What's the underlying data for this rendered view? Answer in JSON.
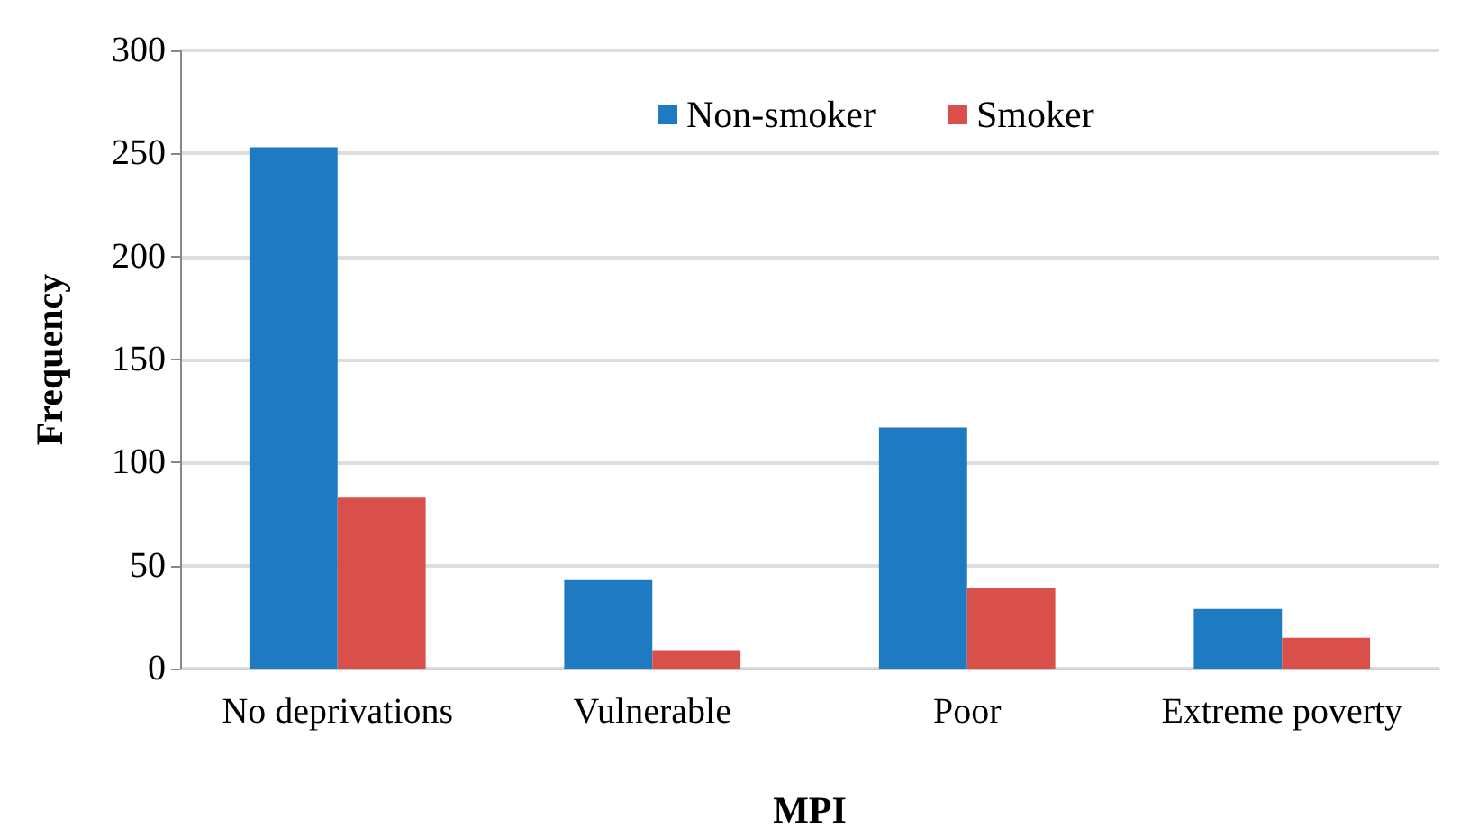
{
  "chart_data": {
    "type": "bar",
    "xlabel": "MPI",
    "ylabel": "Frequency",
    "categories": [
      "No deprivations",
      "Vulnerable",
      "Poor",
      "Extreme poverty"
    ],
    "series": [
      {
        "name": "Non-smoker",
        "color": "#1f7bc1",
        "values": [
          253,
          43,
          117,
          29
        ]
      },
      {
        "name": "Smoker",
        "color": "#d9504b",
        "values": [
          83,
          9,
          39,
          15
        ]
      }
    ],
    "ylim": [
      0,
      300
    ],
    "yticks": [
      0,
      50,
      100,
      150,
      200,
      250,
      300
    ],
    "grid": "y",
    "legend": "top"
  }
}
